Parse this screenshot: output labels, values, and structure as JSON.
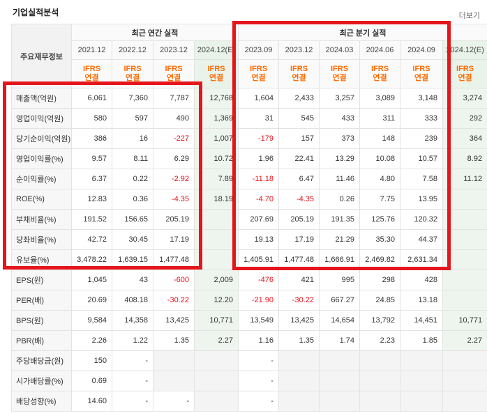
{
  "header": {
    "title": "기업실적분석",
    "more": "더보기"
  },
  "table": {
    "label_header": "주요재무정보",
    "annual_group": "최근 연간 실적",
    "quarter_group": "최근 분기 실적",
    "periods": [
      "2021.12",
      "2022.12",
      "2023.12",
      "2024.12(E)",
      "2023.09",
      "2023.12",
      "2024.03",
      "2024.06",
      "2024.09",
      "2024.12(E)"
    ],
    "standard_top": "IFRS",
    "standard_bottom": "연결",
    "rows": [
      {
        "label": "매출액(억원)",
        "values": [
          "6,061",
          "7,360",
          "7,787",
          "12,768",
          "1,604",
          "2,433",
          "3,257",
          "3,089",
          "3,148",
          "3,274"
        ]
      },
      {
        "label": "영업이익(억원)",
        "values": [
          "580",
          "597",
          "490",
          "1,369",
          "31",
          "545",
          "433",
          "311",
          "333",
          "292"
        ]
      },
      {
        "label": "당기순이익(억원)",
        "values": [
          "386",
          "16",
          "-227",
          "1,007",
          "-179",
          "157",
          "373",
          "148",
          "239",
          "364"
        ]
      },
      {
        "label": "영업이익률(%)",
        "values": [
          "9.57",
          "8.11",
          "6.29",
          "10.72",
          "1.96",
          "22.41",
          "13.29",
          "10.08",
          "10.57",
          "8.92"
        ]
      },
      {
        "label": "순이익률(%)",
        "values": [
          "6.37",
          "0.22",
          "-2.92",
          "7.89",
          "-11.18",
          "6.47",
          "11.46",
          "4.80",
          "7.58",
          "11.12"
        ]
      },
      {
        "label": "ROE(%)",
        "values": [
          "12.83",
          "0.36",
          "-4.35",
          "18.19",
          "-4.70",
          "-4.35",
          "0.26",
          "7.75",
          "13.95",
          ""
        ]
      },
      {
        "label": "부채비율(%)",
        "values": [
          "191.52",
          "156.65",
          "205.19",
          "",
          "207.69",
          "205.19",
          "191.35",
          "125.76",
          "120.32",
          ""
        ]
      },
      {
        "label": "당좌비율(%)",
        "values": [
          "42.72",
          "30.45",
          "17.19",
          "",
          "19.13",
          "17.19",
          "21.29",
          "35.30",
          "44.37",
          ""
        ]
      },
      {
        "label": "유보율(%)",
        "values": [
          "3,478.22",
          "1,639.15",
          "1,477.48",
          "",
          "1,405.91",
          "1,477.48",
          "1,666.91",
          "2,469.82",
          "2,631.34",
          ""
        ]
      },
      {
        "label": "EPS(원)",
        "values": [
          "1,045",
          "43",
          "-600",
          "2,009",
          "-476",
          "421",
          "995",
          "298",
          "428",
          ""
        ]
      },
      {
        "label": "PER(배)",
        "values": [
          "20.69",
          "408.18",
          "-30.22",
          "12.20",
          "-21.90",
          "-30.22",
          "667.27",
          "24.85",
          "13.18",
          ""
        ]
      },
      {
        "label": "BPS(원)",
        "values": [
          "9,584",
          "14,358",
          "13,425",
          "10,771",
          "13,549",
          "13,425",
          "14,654",
          "13,792",
          "14,451",
          "10,771"
        ]
      },
      {
        "label": "PBR(배)",
        "values": [
          "2.26",
          "1.22",
          "1.35",
          "2.27",
          "1.16",
          "1.35",
          "1.74",
          "2.23",
          "1.85",
          "2.27"
        ]
      },
      {
        "label": "주당배당금(원)",
        "values": [
          "150",
          "-",
          "",
          "",
          "-",
          "",
          "",
          "",
          "",
          ""
        ]
      },
      {
        "label": "시가배당률(%)",
        "values": [
          "0.69",
          "-",
          "",
          "",
          "-",
          "",
          "",
          "",
          "",
          ""
        ]
      },
      {
        "label": "배당성향(%)",
        "values": [
          "14.60",
          "-",
          "-",
          "",
          "-",
          "",
          "",
          "",
          "",
          ""
        ]
      }
    ]
  },
  "colors": {
    "negative": "#e5121b",
    "ifrs": "#ff6a00",
    "highlight_box": "#e4161c",
    "estimate_bg": "#eef5ee"
  }
}
